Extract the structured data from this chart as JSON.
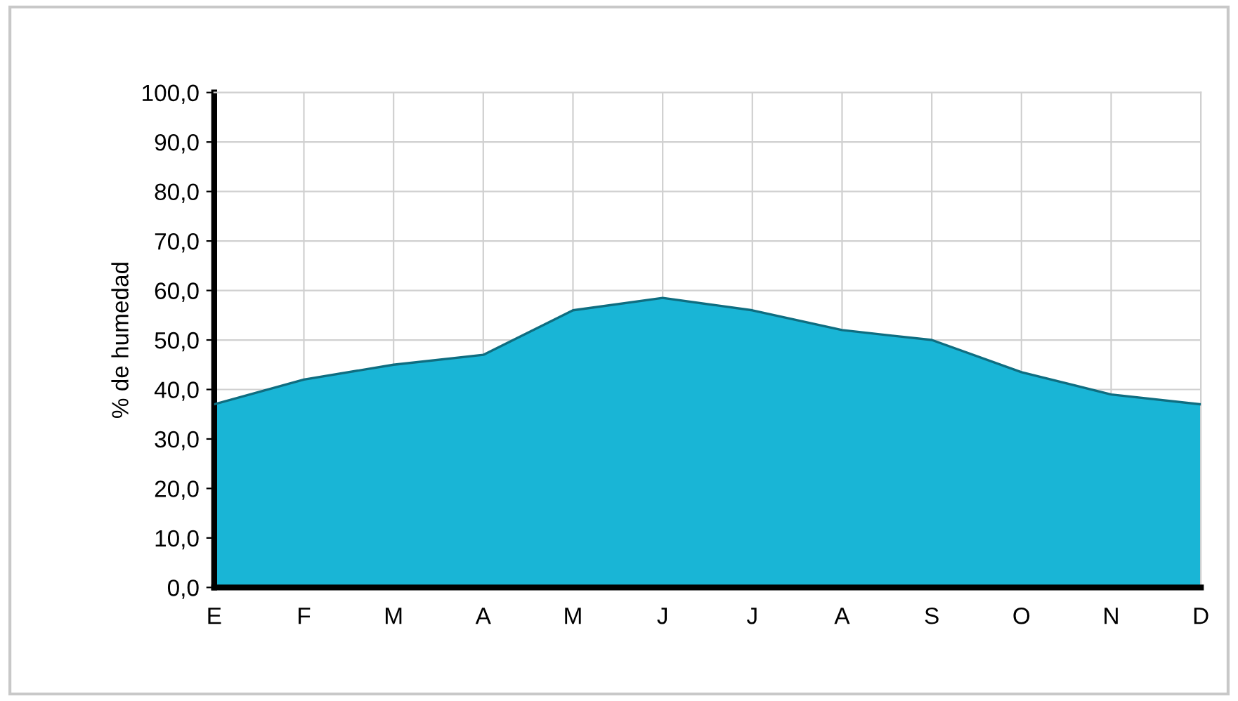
{
  "chart_data": {
    "type": "area",
    "ylabel": "% de humedad",
    "categories": [
      "E",
      "F",
      "M",
      "A",
      "M",
      "J",
      "J",
      "A",
      "S",
      "O",
      "N",
      "D"
    ],
    "series": [
      {
        "color": "#19b5d6",
        "values": [
          37,
          42,
          45,
          47,
          56,
          58.5,
          56,
          52,
          50,
          43.5,
          39,
          37
        ]
      }
    ],
    "ylim": [
      0,
      100
    ],
    "yticks": [
      {
        "value": 0,
        "label": "0,0"
      },
      {
        "value": 10,
        "label": "10,0"
      },
      {
        "value": 20,
        "label": "20,0"
      },
      {
        "value": 30,
        "label": "30,0"
      },
      {
        "value": 40,
        "label": "40,0"
      },
      {
        "value": 50,
        "label": "50,0"
      },
      {
        "value": 60,
        "label": "60,0"
      },
      {
        "value": 70,
        "label": "70,0"
      },
      {
        "value": 80,
        "label": "80,0"
      },
      {
        "value": 90,
        "label": "90,0"
      },
      {
        "value": 100,
        "label": "100,0"
      }
    ],
    "grid": true
  }
}
